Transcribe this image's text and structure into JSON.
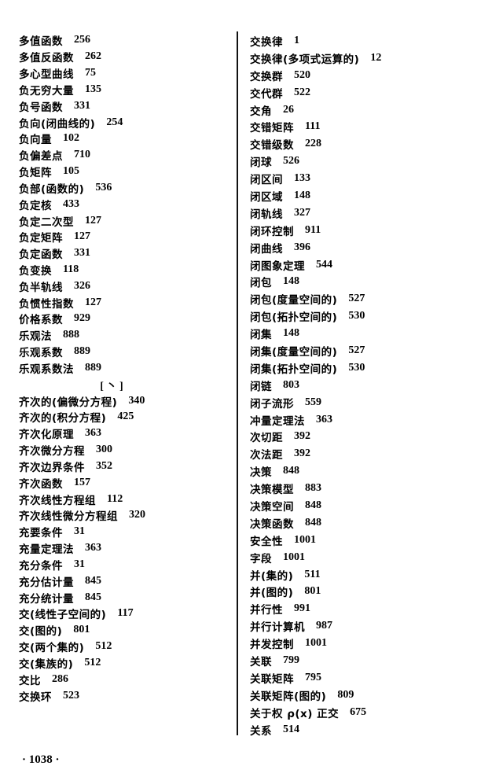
{
  "left_column": [
    {
      "term": "多值函数",
      "page": "256"
    },
    {
      "term": "多值反函数",
      "page": "262"
    },
    {
      "term": "多心型曲线",
      "page": "75"
    },
    {
      "term": "负无穷大量",
      "page": "135"
    },
    {
      "term": "负号函数",
      "page": "331"
    },
    {
      "term": "负向(闭曲线的)",
      "page": "254"
    },
    {
      "term": "负向量",
      "page": "102"
    },
    {
      "term": "负偏差点",
      "page": "710"
    },
    {
      "term": "负矩阵",
      "page": "105"
    },
    {
      "term": "负部(函数的)",
      "page": "536"
    },
    {
      "term": "负定核",
      "page": "433"
    },
    {
      "term": "负定二次型",
      "page": "127"
    },
    {
      "term": "负定矩阵",
      "page": "127"
    },
    {
      "term": "负定函数",
      "page": "331"
    },
    {
      "term": "负变换",
      "page": "118"
    },
    {
      "term": "负半轨线",
      "page": "326"
    },
    {
      "term": "负惯性指数",
      "page": "127"
    },
    {
      "term": "价格系数",
      "page": "929"
    },
    {
      "term": "乐观法",
      "page": "888"
    },
    {
      "term": "乐观系数",
      "page": "889"
    },
    {
      "term": "乐观系数法",
      "page": "889"
    },
    {
      "heading": "[ 丶 ]"
    },
    {
      "term": "齐次的(偏微分方程)",
      "page": "340"
    },
    {
      "term": "齐次的(积分方程)",
      "page": "425"
    },
    {
      "term": "齐次化原理",
      "page": "363"
    },
    {
      "term": "齐次微分方程",
      "page": "300"
    },
    {
      "term": "齐次边界条件",
      "page": "352"
    },
    {
      "term": "齐次函数",
      "page": "157"
    },
    {
      "term": "齐次线性方程组",
      "page": "112"
    },
    {
      "term": "齐次线性微分方程组",
      "page": "320"
    },
    {
      "term": "充要条件",
      "page": "31"
    },
    {
      "term": "充量定理法",
      "page": "363"
    },
    {
      "term": "充分条件",
      "page": "31"
    },
    {
      "term": "充分估计量",
      "page": "845"
    },
    {
      "term": "充分统计量",
      "page": "845"
    },
    {
      "term": "交(线性子空间的)",
      "page": "117"
    },
    {
      "term": "交(图的)",
      "page": "801"
    },
    {
      "term": "交(两个集的)",
      "page": "512"
    },
    {
      "term": "交(集族的)",
      "page": "512"
    },
    {
      "term": "交比",
      "page": "286"
    },
    {
      "term": "交换环",
      "page": "523"
    }
  ],
  "right_column": [
    {
      "term": "交换律",
      "page": "1"
    },
    {
      "term": "交换律(多项式运算的)",
      "page": "12"
    },
    {
      "term": "交换群",
      "page": "520"
    },
    {
      "term": "交代群",
      "page": "522"
    },
    {
      "term": "交角",
      "page": "26"
    },
    {
      "term": "交错矩阵",
      "page": "111"
    },
    {
      "term": "交错级数",
      "page": "228"
    },
    {
      "term": "闭球",
      "page": "526"
    },
    {
      "term": "闭区间",
      "page": "133"
    },
    {
      "term": "闭区域",
      "page": "148"
    },
    {
      "term": "闭轨线",
      "page": "327"
    },
    {
      "term": "闭环控制",
      "page": "911"
    },
    {
      "term": "闭曲线",
      "page": "396"
    },
    {
      "term": "闭图象定理",
      "page": "544"
    },
    {
      "term": "闭包",
      "page": "148"
    },
    {
      "term": "闭包(度量空间的)",
      "page": "527"
    },
    {
      "term": "闭包(拓扑空间的)",
      "page": "530"
    },
    {
      "term": "闭集",
      "page": "148"
    },
    {
      "term": "闭集(度量空间的)",
      "page": "527"
    },
    {
      "term": "闭集(拓扑空间的)",
      "page": "530"
    },
    {
      "term": "闭链",
      "page": "803"
    },
    {
      "term": "闭子流形",
      "page": "559"
    },
    {
      "term": "冲量定理法",
      "page": "363"
    },
    {
      "term": "次切距",
      "page": "392"
    },
    {
      "term": "次法距",
      "page": "392"
    },
    {
      "term": "决策",
      "page": "848"
    },
    {
      "term": "决策模型",
      "page": "883"
    },
    {
      "term": "决策空间",
      "page": "848"
    },
    {
      "term": "决策函数",
      "page": "848"
    },
    {
      "term": "安全性",
      "page": "1001"
    },
    {
      "term": "字段",
      "page": "1001"
    },
    {
      "term": "并(集的)",
      "page": "511"
    },
    {
      "term": "并(图的)",
      "page": "801"
    },
    {
      "term": "并行性",
      "page": "991"
    },
    {
      "term": "并行计算机",
      "page": "987"
    },
    {
      "term": "并发控制",
      "page": "1001"
    },
    {
      "term": "关联",
      "page": "799"
    },
    {
      "term": "关联矩阵",
      "page": "795"
    },
    {
      "term": "关联矩阵(图的)",
      "page": "809"
    },
    {
      "term": "关于权 ρ(x) 正交",
      "page": "675"
    },
    {
      "term": "关系",
      "page": "514"
    }
  ],
  "footer": {
    "page_number": "· 1038 ·"
  }
}
